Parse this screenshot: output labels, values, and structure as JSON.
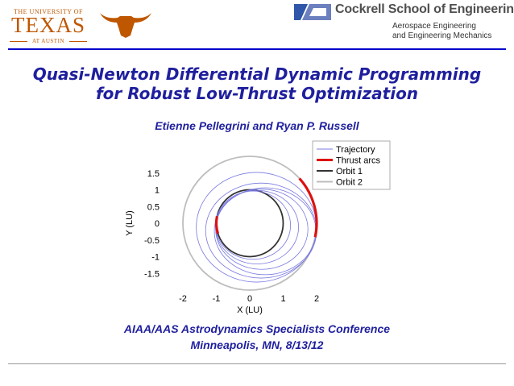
{
  "header": {
    "university_logo": {
      "top_text": "THE UNIVERSITY OF",
      "main_text": "TEXAS",
      "bottom_text": "AT AUSTIN",
      "color": "#bf5700"
    },
    "longhorn_icon": "longhorn-icon",
    "school_logo": {
      "name": "Cockrell School of Engineering",
      "department_line1": "Aerospace Engineering",
      "department_line2": "and Engineering Mechanics",
      "color": "#4f4f4f"
    },
    "rule_color": "#0000cc"
  },
  "title": {
    "line1": "Quasi-Newton Differential Dynamic Programming",
    "line2": "for Robust Low-Thrust Optimization",
    "color": "#1f1f9e"
  },
  "authors": "Etienne Pellegrini and Ryan P. Russell",
  "conference": {
    "name": "AIAA/AAS Astrodynamics Specialists Conference",
    "venue": "Minneapolis, MN, 8/13/12"
  },
  "chart_data": {
    "type": "line",
    "xlabel": "X (LU)",
    "ylabel": "Y (LU)",
    "xlim": [
      -2.4,
      2.4
    ],
    "ylim": [
      -1.9,
      1.9
    ],
    "x_ticks": [
      -2,
      -1,
      0,
      1,
      2
    ],
    "y_ticks": [
      1.5,
      1,
      0.5,
      0,
      -0.5,
      -1,
      -1.5
    ],
    "legend_position": "top-right",
    "legend": [
      "Trajectory",
      "Thrust arcs",
      "Orbit 1",
      "Orbit 2"
    ],
    "series": [
      {
        "name": "Trajectory",
        "color": "#7878e0",
        "style": "thin"
      },
      {
        "name": "Thrust arcs",
        "color": "#dd1111",
        "style": "thick"
      },
      {
        "name": "Orbit 1",
        "color": "#333333",
        "radius": 1
      },
      {
        "name": "Orbit 2",
        "color": "#bdbdbd",
        "radius": 2
      }
    ]
  }
}
